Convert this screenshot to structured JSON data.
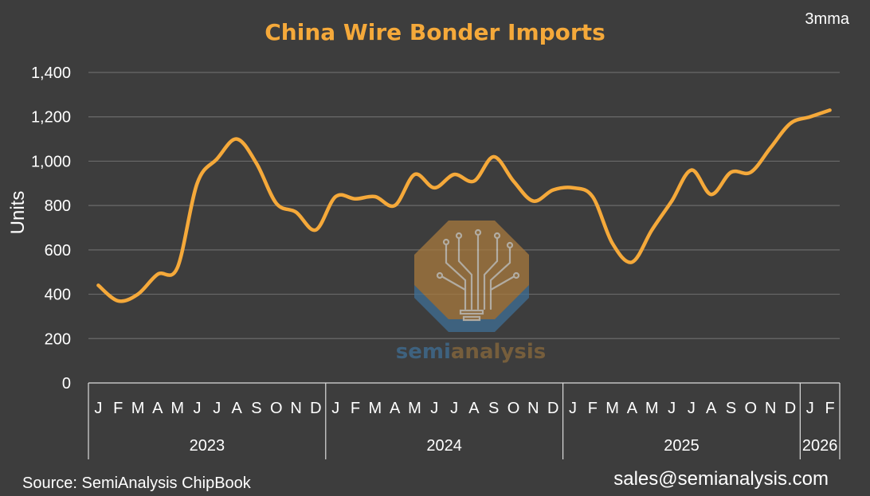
{
  "chart_data": {
    "type": "line",
    "title": "China Wire Bonder Imports",
    "note": "3mma",
    "ylabel": "Units",
    "ylim": [
      0,
      1400
    ],
    "yticks": [
      "0",
      "200",
      "400",
      "600",
      "800",
      "1,000",
      "1,200",
      "1,400"
    ],
    "ytick_values": [
      0,
      200,
      400,
      600,
      800,
      1000,
      1200,
      1400
    ],
    "grid": true,
    "months": [
      "J",
      "F",
      "M",
      "A",
      "M",
      "J",
      "J",
      "A",
      "S",
      "O",
      "N",
      "D",
      "J",
      "F",
      "M",
      "A",
      "M",
      "J",
      "J",
      "A",
      "S",
      "O",
      "N",
      "D",
      "J",
      "F",
      "M",
      "A",
      "M",
      "J",
      "J",
      "A",
      "S",
      "O",
      "N",
      "D",
      "J",
      "F"
    ],
    "years": [
      {
        "label": "2023",
        "months": 12
      },
      {
        "label": "2024",
        "months": 12
      },
      {
        "label": "2025",
        "months": 12
      },
      {
        "label": "2026",
        "months": 2
      }
    ],
    "series": [
      {
        "color": "#f5a93a",
        "values": [
          440,
          370,
          400,
          490,
          520,
          900,
          1010,
          1100,
          990,
          810,
          770,
          690,
          840,
          830,
          840,
          800,
          940,
          880,
          940,
          910,
          1020,
          910,
          820,
          870,
          880,
          840,
          630,
          545,
          690,
          820,
          960,
          850,
          950,
          950,
          1060,
          1170,
          1200,
          1230
        ]
      }
    ]
  },
  "footer": {
    "source": "Source: SemiAnalysis ChipBook",
    "email": "sales@semianalysis.com"
  },
  "watermark": {
    "text_part1": "semi",
    "text_part2": "analysis",
    "color_part1": "#3f6f95",
    "color_part2": "#8a6a3c"
  }
}
